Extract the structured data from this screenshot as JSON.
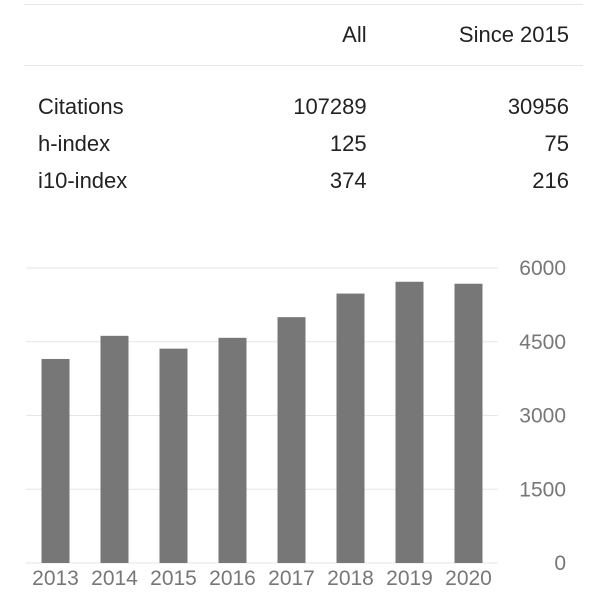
{
  "table": {
    "headers": [
      "",
      "All",
      "Since 2015"
    ],
    "rows": [
      {
        "label": "Citations",
        "all": "107289",
        "since": "30956"
      },
      {
        "label": "h-index",
        "all": "125",
        "since": "75"
      },
      {
        "label": "i10-index",
        "all": "374",
        "since": "216"
      }
    ]
  },
  "chart_data": {
    "type": "bar",
    "categories": [
      "2013",
      "2014",
      "2015",
      "2016",
      "2017",
      "2018",
      "2019",
      "2020"
    ],
    "values": [
      4150,
      4620,
      4360,
      4580,
      5000,
      5480,
      5720,
      5680
    ],
    "title": "",
    "xlabel": "",
    "ylabel": "",
    "ylim": [
      0,
      6000
    ],
    "yticks": [
      0,
      1500,
      3000,
      4500,
      6000
    ],
    "grid": true,
    "bar_color": "#777777",
    "grid_color": "#e6e6e6"
  }
}
